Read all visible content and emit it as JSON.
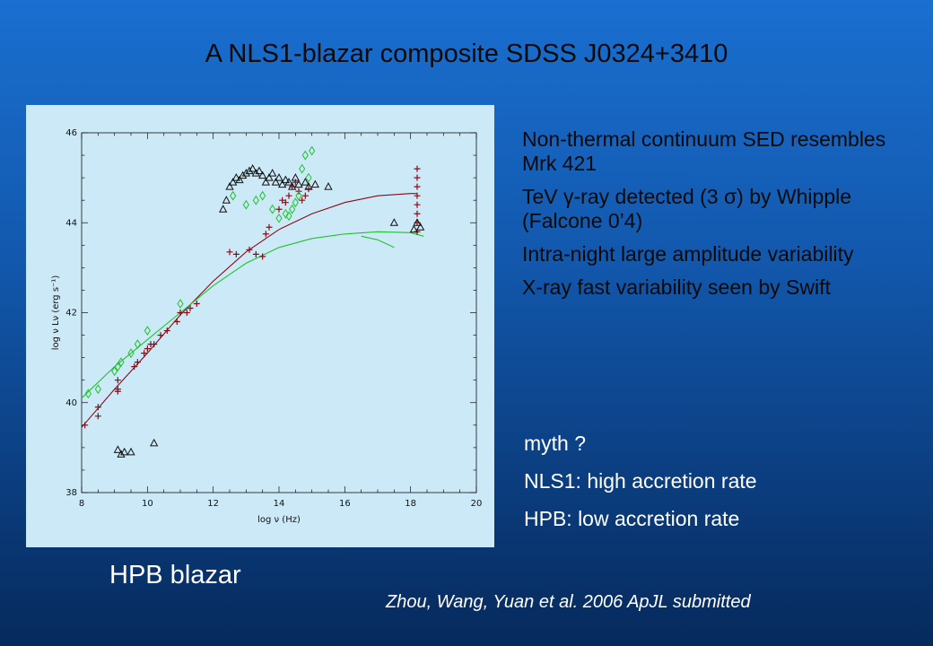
{
  "slide": {
    "title": "A NLS1-blazar composite SDSS J0324+3410",
    "bullets": [
      "Non-thermal continuum SED resembles Mrk 421",
      "TeV γ-ray detected (3 σ) by Whipple (Falcone 0’4)",
      "Intra-night large amplitude variability",
      "X-ray fast variability seen by Swift"
    ],
    "notes": [
      "myth ?",
      "NLS1: high accretion rate",
      "HPB:  low accretion rate"
    ],
    "caption": "HPB blazar",
    "citation": "Zhou, Wang, Yuan et al. 2006 ApJL submitted"
  },
  "colors": {
    "background_top": "#1a6fd0",
    "background_bottom": "#062a5c",
    "plot_background": "#cce9f8",
    "series_plus": "#8b0a14",
    "series_diamond": "#22c22e",
    "series_triangle": "#111111"
  },
  "chart_data": {
    "type": "scatter",
    "xlabel": "log ν (Hz)",
    "ylabel": "log ν Lν (erg s⁻¹)",
    "xlim": [
      8,
      20
    ],
    "ylim": [
      38,
      46
    ],
    "xticks": [
      8,
      10,
      12,
      14,
      16,
      18,
      20
    ],
    "yticks": [
      38,
      40,
      42,
      44,
      46
    ],
    "series": [
      {
        "marker": "plus",
        "color": "#8b0a14",
        "points": [
          [
            8.1,
            39.5
          ],
          [
            8.5,
            39.9
          ],
          [
            8.5,
            39.7
          ],
          [
            9.1,
            40.3
          ],
          [
            9.1,
            40.25
          ],
          [
            9.1,
            40.5
          ],
          [
            9.6,
            40.8
          ],
          [
            9.7,
            40.9
          ],
          [
            9.9,
            41.1
          ],
          [
            10.0,
            41.2
          ],
          [
            10.1,
            41.3
          ],
          [
            10.2,
            41.3
          ],
          [
            10.4,
            41.5
          ],
          [
            10.6,
            41.6
          ],
          [
            10.9,
            41.8
          ],
          [
            11.0,
            42.0
          ],
          [
            11.2,
            42.0
          ],
          [
            11.3,
            42.1
          ],
          [
            11.5,
            42.2
          ],
          [
            12.5,
            43.35
          ],
          [
            12.7,
            43.3
          ],
          [
            13.1,
            43.4
          ],
          [
            13.3,
            43.3
          ],
          [
            13.5,
            43.25
          ],
          [
            13.6,
            43.75
          ],
          [
            13.7,
            43.9
          ],
          [
            14.0,
            44.3
          ],
          [
            14.1,
            44.5
          ],
          [
            14.2,
            44.45
          ],
          [
            14.3,
            44.6
          ],
          [
            14.4,
            44.8
          ],
          [
            14.5,
            44.9
          ],
          [
            14.6,
            44.7
          ],
          [
            14.7,
            44.5
          ],
          [
            14.8,
            44.6
          ],
          [
            14.9,
            44.75
          ],
          [
            18.2,
            45.2
          ],
          [
            18.2,
            45.0
          ],
          [
            18.2,
            44.8
          ],
          [
            18.2,
            44.6
          ],
          [
            18.2,
            44.4
          ],
          [
            18.2,
            44.2
          ],
          [
            18.2,
            44.0
          ],
          [
            18.2,
            43.8
          ]
        ]
      },
      {
        "marker": "diamond",
        "color": "#22c22e",
        "points": [
          [
            8.2,
            40.2
          ],
          [
            8.5,
            40.3
          ],
          [
            9.0,
            40.7
          ],
          [
            9.2,
            40.9
          ],
          [
            9.1,
            40.8
          ],
          [
            9.5,
            41.1
          ],
          [
            9.7,
            41.3
          ],
          [
            10.0,
            41.6
          ],
          [
            11.0,
            42.2
          ],
          [
            12.6,
            44.6
          ],
          [
            13.0,
            44.4
          ],
          [
            13.3,
            44.5
          ],
          [
            13.5,
            44.6
          ],
          [
            13.8,
            44.3
          ],
          [
            14.0,
            44.1
          ],
          [
            14.2,
            44.2
          ],
          [
            14.3,
            44.15
          ],
          [
            14.4,
            44.3
          ],
          [
            14.5,
            44.45
          ],
          [
            14.6,
            44.6
          ],
          [
            14.7,
            45.2
          ],
          [
            14.8,
            45.5
          ],
          [
            14.9,
            45.0
          ],
          [
            15.0,
            45.6
          ]
        ]
      },
      {
        "marker": "triangle",
        "color": "#111111",
        "points": [
          [
            9.1,
            38.95
          ],
          [
            9.2,
            38.85
          ],
          [
            9.3,
            38.9
          ],
          [
            9.5,
            38.9
          ],
          [
            10.2,
            39.1
          ],
          [
            12.3,
            44.3
          ],
          [
            12.4,
            44.5
          ],
          [
            12.5,
            44.8
          ],
          [
            12.6,
            44.9
          ],
          [
            12.7,
            45.0
          ],
          [
            12.8,
            44.95
          ],
          [
            12.9,
            45.05
          ],
          [
            13.0,
            45.1
          ],
          [
            13.1,
            45.15
          ],
          [
            13.2,
            45.2
          ],
          [
            13.3,
            45.1
          ],
          [
            13.4,
            45.15
          ],
          [
            13.5,
            45.05
          ],
          [
            13.6,
            44.9
          ],
          [
            13.7,
            45.0
          ],
          [
            13.8,
            45.1
          ],
          [
            13.9,
            44.9
          ],
          [
            14.0,
            45.0
          ],
          [
            14.1,
            44.85
          ],
          [
            14.2,
            44.95
          ],
          [
            14.3,
            44.9
          ],
          [
            14.4,
            44.8
          ],
          [
            14.5,
            45.0
          ],
          [
            14.6,
            44.85
          ],
          [
            14.8,
            44.9
          ],
          [
            14.9,
            44.8
          ],
          [
            15.1,
            44.85
          ],
          [
            15.5,
            44.8
          ],
          [
            17.5,
            44.0
          ],
          [
            18.1,
            43.85
          ],
          [
            18.2,
            44.0
          ],
          [
            18.3,
            43.9
          ]
        ]
      }
    ],
    "curves": [
      {
        "color": "#8b0a14",
        "points": [
          [
            8.0,
            39.45
          ],
          [
            9.0,
            40.3
          ],
          [
            10.0,
            41.1
          ],
          [
            11.0,
            41.95
          ],
          [
            12.0,
            42.7
          ],
          [
            13.0,
            43.35
          ],
          [
            14.0,
            43.85
          ],
          [
            15.0,
            44.2
          ],
          [
            16.0,
            44.45
          ],
          [
            17.0,
            44.6
          ],
          [
            18.0,
            44.65
          ],
          [
            18.2,
            44.65
          ]
        ]
      },
      {
        "color": "#22c22e",
        "points": [
          [
            8.0,
            40.1
          ],
          [
            9.0,
            40.8
          ],
          [
            10.0,
            41.4
          ],
          [
            11.0,
            42.0
          ],
          [
            12.0,
            42.6
          ],
          [
            13.0,
            43.1
          ],
          [
            14.0,
            43.45
          ],
          [
            15.0,
            43.65
          ],
          [
            16.0,
            43.75
          ],
          [
            17.0,
            43.8
          ],
          [
            18.0,
            43.78
          ],
          [
            18.4,
            43.7
          ]
        ]
      },
      {
        "color": "#22c22e",
        "points": [
          [
            16.5,
            43.7
          ],
          [
            17.0,
            43.62
          ],
          [
            17.5,
            43.45
          ]
        ]
      }
    ]
  }
}
